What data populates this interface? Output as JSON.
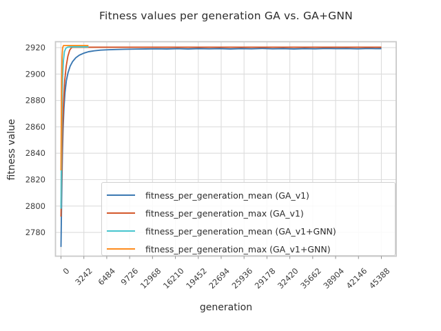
{
  "chart_data": {
    "type": "line",
    "title": "Fitness values per generation GA vs. GA+GNN",
    "xlabel": "generation",
    "ylabel": "fitness value",
    "xlim": [
      -780,
      47490
    ],
    "ylim": [
      2762,
      2924.5
    ],
    "xticks": [
      0,
      3242,
      6484,
      9726,
      12968,
      16210,
      19452,
      22694,
      25936,
      29178,
      32420,
      35662,
      38904,
      42146,
      45388
    ],
    "yticks": [
      2780,
      2800,
      2820,
      2840,
      2860,
      2880,
      2900,
      2920
    ],
    "grid": true,
    "grid_color": "#dcdcdc",
    "spine_color": "#c9c9c9",
    "legend_position": "lower right inside",
    "series": [
      {
        "name": "fitness_per_generation_mean (GA_v1)",
        "color": "#3a78b2",
        "x": [
          0,
          20,
          50,
          90,
          140,
          210,
          300,
          420,
          570,
          760,
          1000,
          1300,
          1650,
          2100,
          2600,
          3200,
          3900,
          4700,
          5600,
          6600,
          7700,
          9000,
          10500,
          12000,
          13500,
          15000,
          16500,
          18000,
          19500,
          21000,
          22500,
          24000,
          25500,
          27000,
          28500,
          30000,
          31500,
          33000,
          34500,
          36000,
          37500,
          39000,
          40500,
          42000,
          43500,
          44600,
          45388
        ],
        "y": [
          2769,
          2776,
          2788,
          2803,
          2820,
          2840,
          2859,
          2874,
          2886,
          2895,
          2901,
          2906,
          2909.5,
          2912.3,
          2914.3,
          2915.8,
          2916.9,
          2917.6,
          2918.1,
          2918.4,
          2918.6,
          2918.8,
          2918.9,
          2919.0,
          2919.1,
          2919.0,
          2919.2,
          2919.0,
          2919.3,
          2919.1,
          2919.3,
          2919.0,
          2919.3,
          2919.1,
          2919.4,
          2919.1,
          2919.3,
          2919.0,
          2919.3,
          2919.1,
          2919.4,
          2919.2,
          2919.3,
          2919.1,
          2919.4,
          2919.2,
          2919.3
        ]
      },
      {
        "name": "fitness_per_generation_max (GA_v1)",
        "color": "#d3572a",
        "x": [
          0,
          60,
          130,
          230,
          360,
          530,
          740,
          980,
          1230,
          1480,
          1700,
          45388
        ],
        "y": [
          2792,
          2812,
          2834,
          2857,
          2878,
          2895,
          2906,
          2913.5,
          2918,
          2920,
          2920.3,
          2920.3
        ]
      },
      {
        "name": "fitness_per_generation_mean (GA_v1+GNN)",
        "color": "#46c5ce",
        "x": [
          0,
          40,
          90,
          150,
          230,
          340,
          490,
          690,
          950,
          1400,
          2200,
          3894
        ],
        "y": [
          2798,
          2824,
          2851,
          2877,
          2897,
          2910,
          2917,
          2919.6,
          2920.4,
          2920.6,
          2920.6,
          2920.6
        ]
      },
      {
        "name": "fitness_per_generation_max (GA_v1+GNN)",
        "color": "#fe8b1c",
        "x": [
          0,
          45,
          95,
          155,
          235,
          350,
          3894
        ],
        "y": [
          2827,
          2865,
          2896,
          2913,
          2920,
          2921.6,
          2921.6
        ]
      }
    ]
  }
}
